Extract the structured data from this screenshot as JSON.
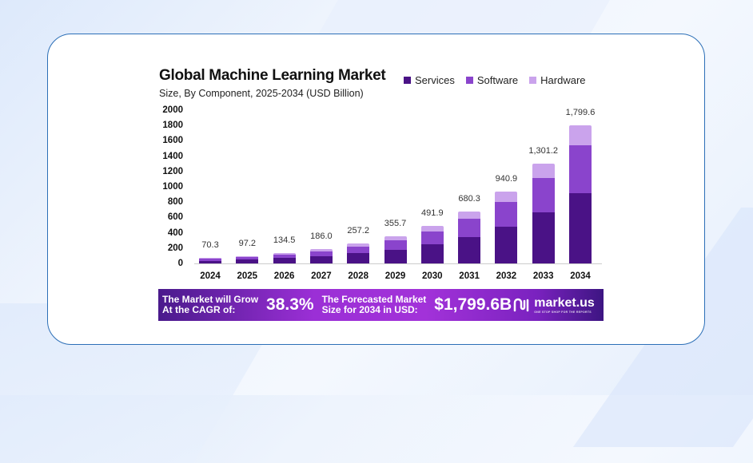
{
  "chart_data": {
    "type": "bar",
    "stacked": true,
    "title": "Global Machine Learning Market",
    "subtitle": "Size, By Component, 2025-2034 (USD Billion)",
    "xlabel": "",
    "ylabel": "",
    "ylim": [
      0,
      2000
    ],
    "yticks": [
      "2000",
      "1800",
      "1600",
      "1400",
      "1200",
      "1000",
      "800",
      "600",
      "400",
      "200",
      "0"
    ],
    "categories": [
      "2024",
      "2025",
      "2026",
      "2027",
      "2028",
      "2029",
      "2030",
      "2031",
      "2032",
      "2033",
      "2034"
    ],
    "totals": [
      70.3,
      97.2,
      134.5,
      186.0,
      257.2,
      355.7,
      491.9,
      680.3,
      940.9,
      1301.2,
      1799.6
    ],
    "total_labels": [
      "70.3",
      "97.2",
      "134.5",
      "186.0",
      "257.2",
      "355.7",
      "491.9",
      "680.3",
      "940.9",
      "1,301.2",
      "1,799.6"
    ],
    "series": [
      {
        "name": "Services",
        "color": "#4a1286",
        "values": [
          36,
          50,
          69,
          95,
          131,
          181,
          251,
          347,
          480,
          667,
          917
        ]
      },
      {
        "name": "Software",
        "color": "#8a44cc",
        "values": [
          24,
          33,
          46,
          63,
          88,
          122,
          168,
          233,
          322,
          448,
          625
        ]
      },
      {
        "name": "Hardware",
        "color": "#caa3ec",
        "values": [
          10.3,
          14.2,
          19.5,
          28.0,
          38.2,
          52.7,
          72.9,
          100.3,
          138.9,
          186.2,
          257.6
        ]
      }
    ],
    "legend_position": "top-right",
    "grid": false
  },
  "banner": {
    "cagr_label_line1": "The Market will Grow",
    "cagr_label_line2": "At the CAGR of:",
    "cagr_value": "38.3%",
    "forecast_label_line1": "The Forecasted Market",
    "forecast_label_line2": "Size for 2034 in USD:",
    "forecast_value": "$1,799.6B",
    "brand": "market.us",
    "brand_tagline": "ONE STOP SHOP FOR THE REPORTS"
  },
  "colors": {
    "card_border": "#2c6fb7",
    "banner_start": "#4a1a8c",
    "banner_mid": "#a232d9"
  }
}
